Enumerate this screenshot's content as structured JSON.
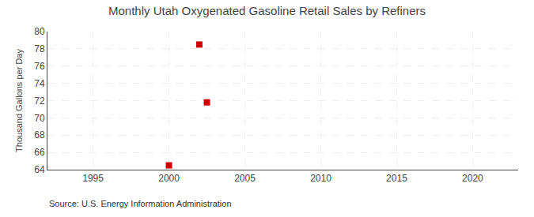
{
  "chart_data": {
    "type": "scatter",
    "title": "Monthly Utah Oxygenated Gasoline Retail Sales by Refiners",
    "ylabel": "Thousand Gallons per Day",
    "source": "Source: U.S. Energy Information Administration",
    "x": [
      2000.0,
      2002.0,
      2002.5
    ],
    "values": [
      64.5,
      78.5,
      71.8
    ],
    "color": "#cc0000",
    "marker": "square",
    "xlim": [
      1992,
      2023
    ],
    "xticks": [
      1995,
      2000,
      2005,
      2010,
      2015,
      2020
    ],
    "ylim": [
      64,
      80
    ],
    "yticks": [
      64,
      66,
      68,
      70,
      72,
      74,
      76,
      78,
      80
    ],
    "grid": true
  }
}
